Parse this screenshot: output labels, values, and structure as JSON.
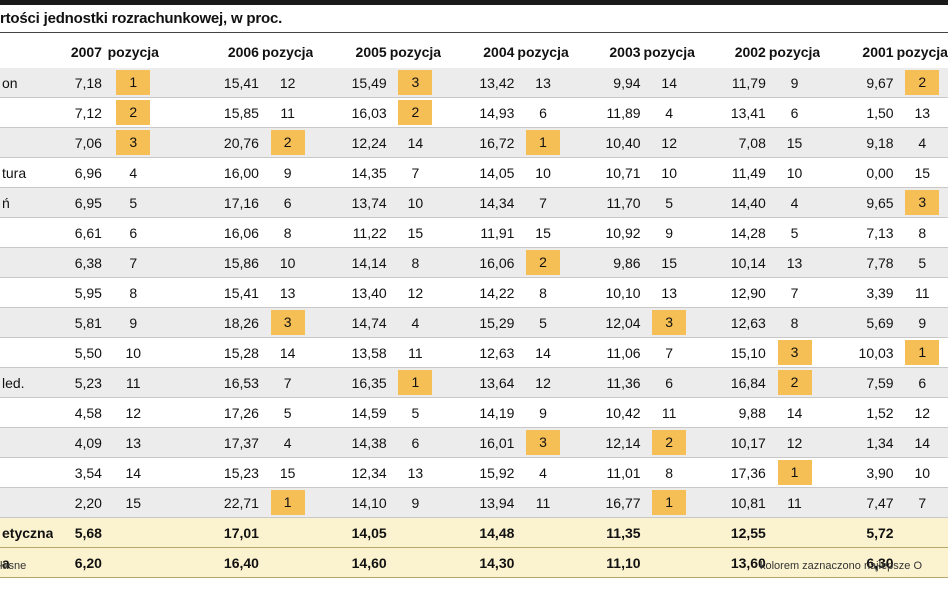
{
  "title": "rtości jednostki rozrachunkowej, w proc.",
  "footer": {
    "left": "łasne",
    "right": "kolorem zaznaczono najlepsze O"
  },
  "colors": {
    "highlight": "#f6bf55",
    "summary": "#fbf3cf",
    "stripe": "#ececec",
    "bar": "#1a1a1a"
  },
  "chart_data": {
    "type": "table",
    "title": "rtości jednostki rozrachunkowej, w proc.",
    "columns": [
      "",
      "2007",
      "pozycja",
      "2006",
      "pozycja",
      "2005",
      "pozycja",
      "2004",
      "pozycja",
      "2003",
      "pozycja",
      "2002",
      "pozycja",
      "2001",
      "pozycja"
    ],
    "rows": [
      {
        "label": "on",
        "cells": [
          "7,18",
          "1",
          "15,41",
          "12",
          "15,49",
          "3",
          "13,42",
          "13",
          "9,94",
          "14",
          "11,79",
          "9",
          "9,67",
          "2"
        ],
        "hl": [
          1,
          5,
          13
        ]
      },
      {
        "label": "",
        "cells": [
          "7,12",
          "2",
          "15,85",
          "11",
          "16,03",
          "2",
          "14,93",
          "6",
          "11,89",
          "4",
          "13,41",
          "6",
          "1,50",
          "13"
        ],
        "hl": [
          1,
          5
        ]
      },
      {
        "label": "",
        "cells": [
          "7,06",
          "3",
          "20,76",
          "2",
          "12,24",
          "14",
          "16,72",
          "1",
          "10,40",
          "12",
          "7,08",
          "15",
          "9,18",
          "4"
        ],
        "hl": [
          1,
          3,
          7
        ]
      },
      {
        "label": "tura",
        "cells": [
          "6,96",
          "4",
          "16,00",
          "9",
          "14,35",
          "7",
          "14,05",
          "10",
          "10,71",
          "10",
          "11,49",
          "10",
          "0,00",
          "15"
        ],
        "hl": []
      },
      {
        "label": "ń",
        "cells": [
          "6,95",
          "5",
          "17,16",
          "6",
          "13,74",
          "10",
          "14,34",
          "7",
          "11,70",
          "5",
          "14,40",
          "4",
          "9,65",
          "3"
        ],
        "hl": [
          13
        ]
      },
      {
        "label": "",
        "cells": [
          "6,61",
          "6",
          "16,06",
          "8",
          "11,22",
          "15",
          "11,91",
          "15",
          "10,92",
          "9",
          "14,28",
          "5",
          "7,13",
          "8"
        ],
        "hl": []
      },
      {
        "label": "",
        "cells": [
          "6,38",
          "7",
          "15,86",
          "10",
          "14,14",
          "8",
          "16,06",
          "2",
          "9,86",
          "15",
          "10,14",
          "13",
          "7,78",
          "5"
        ],
        "hl": [
          7
        ]
      },
      {
        "label": "",
        "cells": [
          "5,95",
          "8",
          "15,41",
          "13",
          "13,40",
          "12",
          "14,22",
          "8",
          "10,10",
          "13",
          "12,90",
          "7",
          "3,39",
          "11"
        ],
        "hl": []
      },
      {
        "label": "",
        "cells": [
          "5,81",
          "9",
          "18,26",
          "3",
          "14,74",
          "4",
          "15,29",
          "5",
          "12,04",
          "3",
          "12,63",
          "8",
          "5,69",
          "9"
        ],
        "hl": [
          3,
          9
        ]
      },
      {
        "label": "",
        "cells": [
          "5,50",
          "10",
          "15,28",
          "14",
          "13,58",
          "11",
          "12,63",
          "14",
          "11,06",
          "7",
          "15,10",
          "3",
          "10,03",
          "1"
        ],
        "hl": [
          11,
          13
        ]
      },
      {
        "label": "led.",
        "cells": [
          "5,23",
          "11",
          "16,53",
          "7",
          "16,35",
          "1",
          "13,64",
          "12",
          "11,36",
          "6",
          "16,84",
          "2",
          "7,59",
          "6"
        ],
        "hl": [
          5,
          11
        ]
      },
      {
        "label": "",
        "cells": [
          "4,58",
          "12",
          "17,26",
          "5",
          "14,59",
          "5",
          "14,19",
          "9",
          "10,42",
          "11",
          "9,88",
          "14",
          "1,52",
          "12"
        ],
        "hl": []
      },
      {
        "label": "",
        "cells": [
          "4,09",
          "13",
          "17,37",
          "4",
          "14,38",
          "6",
          "16,01",
          "3",
          "12,14",
          "2",
          "10,17",
          "12",
          "1,34",
          "14"
        ],
        "hl": [
          7,
          9
        ]
      },
      {
        "label": "",
        "cells": [
          "3,54",
          "14",
          "15,23",
          "15",
          "12,34",
          "13",
          "15,92",
          "4",
          "11,01",
          "8",
          "17,36",
          "1",
          "3,90",
          "10"
        ],
        "hl": [
          11
        ]
      },
      {
        "label": "",
        "cells": [
          "2,20",
          "15",
          "22,71",
          "1",
          "14,10",
          "9",
          "13,94",
          "11",
          "16,77",
          "1",
          "10,81",
          "11",
          "7,47",
          "7"
        ],
        "hl": [
          3,
          9
        ]
      }
    ],
    "summary": [
      {
        "label": "etyczna",
        "cells": [
          "5,68",
          "",
          "17,01",
          "",
          "14,05",
          "",
          "14,48",
          "",
          "11,35",
          "",
          "12,55",
          "",
          "5,72",
          ""
        ]
      },
      {
        "label": "a",
        "cells": [
          "6,20",
          "",
          "16,40",
          "",
          "14,60",
          "",
          "14,30",
          "",
          "11,10",
          "",
          "13,60",
          "",
          "6,30",
          ""
        ]
      }
    ]
  }
}
